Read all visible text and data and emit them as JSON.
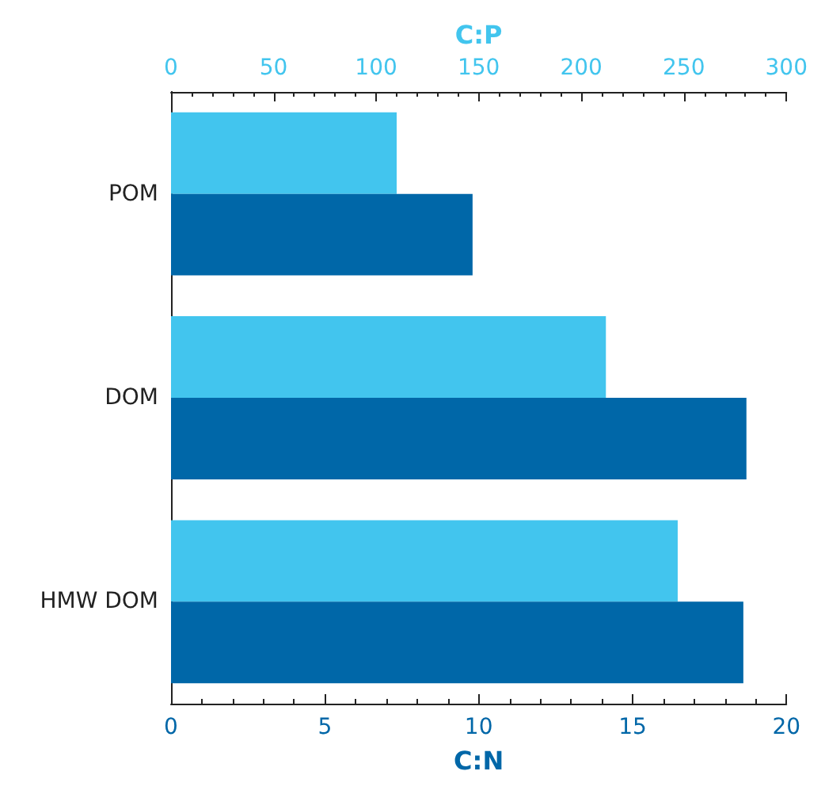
{
  "chart_data": {
    "type": "bar",
    "orientation": "horizontal",
    "categories": [
      "POM",
      "DOM",
      "HMW DOM"
    ],
    "series": [
      {
        "color": "#42c5ee",
        "axis": "x2",
        "values": [
          110,
          212,
          247
        ]
      },
      {
        "color": "#0067a8",
        "values": [
          9.8,
          18.7,
          18.6
        ]
      }
    ],
    "xlabel": "C:N",
    "xlim": [
      0,
      20
    ],
    "xticks": [
      0,
      5,
      10,
      15,
      20
    ],
    "x2label": "C:P",
    "x2lim": [
      0,
      300
    ],
    "x2ticks": [
      0,
      50,
      100,
      150,
      200,
      250,
      300
    ],
    "grid": false
  }
}
